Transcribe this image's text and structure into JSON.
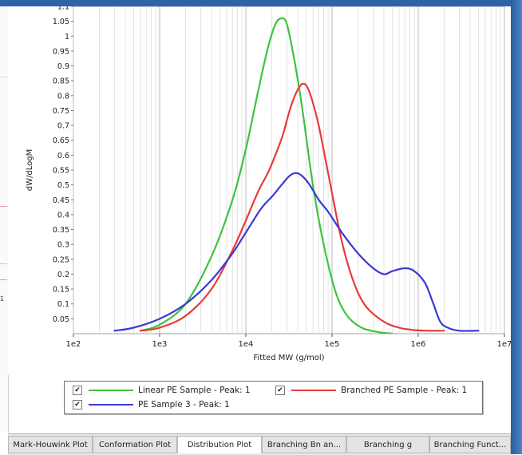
{
  "tabs": [
    {
      "label": "Mark-Houwink Plot"
    },
    {
      "label": "Conformation Plot"
    },
    {
      "label": "Distribution Plot",
      "active": true
    },
    {
      "label": "Branching Bn an..."
    },
    {
      "label": "Branching g"
    },
    {
      "label": "Branching Funct..."
    }
  ],
  "left_panel": {
    "partial_label": "1"
  },
  "legend": [
    {
      "label": "Linear PE Sample - Peak: 1",
      "color": "#3cc43c",
      "checked": true
    },
    {
      "label": "Branched PE Sample - Peak: 1",
      "color": "#e83a3a",
      "checked": true
    },
    {
      "label": "PE Sample 3 - Peak: 1",
      "color": "#3a3ad6",
      "checked": true
    }
  ],
  "chart_data": {
    "type": "line",
    "xlabel": "Fitted MW (g/mol)",
    "ylabel": "dW/dLogM",
    "xscale": "log",
    "xlim": [
      100,
      10000000
    ],
    "ylim": [
      0,
      1.1
    ],
    "x_tick_labels": [
      "1e2",
      "1e3",
      "1e4",
      "1e5",
      "1e6",
      "1e7"
    ],
    "y_tick_labels": [
      "0.05",
      "0.1",
      "0.15",
      "0.2",
      "0.25",
      "0.3",
      "0.35",
      "0.4",
      "0.45",
      "0.5",
      "0.55",
      "0.6",
      "0.65",
      "0.7",
      "0.75",
      "0.8",
      "0.85",
      "0.9",
      "0.95",
      "1",
      "1.05",
      "1.1"
    ],
    "grid": true,
    "series": [
      {
        "name": "Linear PE Sample - Peak: 1",
        "color": "#3cc43c",
        "x": [
          600,
          1000,
          2000,
          4000,
          7000,
          10000,
          14000,
          18000,
          22000,
          26000,
          30000,
          36000,
          45000,
          60000,
          80000,
          110000,
          150000,
          220000,
          350000,
          500000
        ],
        "y": [
          0.01,
          0.03,
          0.1,
          0.26,
          0.45,
          0.62,
          0.82,
          0.96,
          1.04,
          1.06,
          1.04,
          0.93,
          0.76,
          0.5,
          0.3,
          0.14,
          0.06,
          0.02,
          0.005,
          0.0
        ]
      },
      {
        "name": "Branched PE Sample - Peak: 1",
        "color": "#e83a3a",
        "x": [
          600,
          1000,
          2000,
          4000,
          7000,
          10000,
          14000,
          18000,
          22000,
          27000,
          33000,
          40000,
          47000,
          55000,
          70000,
          90000,
          130000,
          180000,
          250000,
          400000,
          600000,
          900000,
          1300000,
          2000000
        ],
        "y": [
          0.01,
          0.02,
          0.06,
          0.15,
          0.28,
          0.38,
          0.48,
          0.54,
          0.6,
          0.67,
          0.76,
          0.82,
          0.84,
          0.81,
          0.7,
          0.54,
          0.31,
          0.17,
          0.09,
          0.04,
          0.02,
          0.012,
          0.01,
          0.01
        ]
      },
      {
        "name": "PE Sample 3 - Peak: 1",
        "color": "#3a3ad6",
        "x": [
          300,
          500,
          1000,
          2000,
          4000,
          7000,
          10000,
          15000,
          20000,
          26000,
          32000,
          38000,
          45000,
          55000,
          70000,
          90000,
          130000,
          200000,
          300000,
          400000,
          500000,
          700000,
          900000,
          1200000,
          1500000,
          1800000,
          2200000,
          3000000,
          5000000
        ],
        "y": [
          0.01,
          0.02,
          0.05,
          0.1,
          0.18,
          0.27,
          0.34,
          0.42,
          0.46,
          0.5,
          0.53,
          0.54,
          0.53,
          0.5,
          0.45,
          0.41,
          0.34,
          0.27,
          0.22,
          0.2,
          0.21,
          0.22,
          0.21,
          0.17,
          0.1,
          0.04,
          0.02,
          0.01,
          0.01
        ]
      }
    ]
  }
}
